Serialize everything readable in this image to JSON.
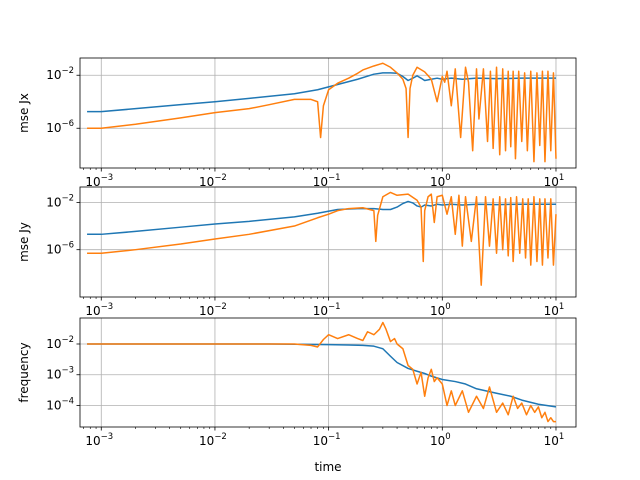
{
  "chart_data": [
    {
      "type": "line",
      "xlabel": "",
      "ylabel": "mse Jx",
      "xscale": "log",
      "yscale": "log",
      "xlim": [
        0.00065,
        15
      ],
      "ylim": [
        1e-09,
        0.2
      ],
      "grid": true,
      "xticks": [
        {
          "base": "10",
          "exp": "−3",
          "value": 0.001
        },
        {
          "base": "10",
          "exp": "−2",
          "value": 0.01
        },
        {
          "base": "10",
          "exp": "−1",
          "value": 0.1
        },
        {
          "base": "10",
          "exp": "0",
          "value": 1
        },
        {
          "base": "10",
          "exp": "1",
          "value": 10
        }
      ],
      "yticks": [
        {
          "base": "10",
          "exp": "−6",
          "value": 1e-06
        },
        {
          "base": "10",
          "exp": "−2",
          "value": 0.01
        }
      ],
      "series": [
        {
          "color": "#1f77b4",
          "x": [
            0.00075,
            0.001,
            0.002,
            0.005,
            0.01,
            0.02,
            0.05,
            0.08,
            0.12,
            0.18,
            0.25,
            0.3,
            0.35,
            0.4,
            0.45,
            0.5,
            0.55,
            0.6,
            0.65,
            0.7,
            0.8,
            0.9,
            1.0,
            1.2,
            1.5,
            2.0,
            3.0,
            5.0,
            10.0
          ],
          "y": [
            1.8e-05,
            1.8e-05,
            3e-05,
            6e-05,
            0.0001,
            0.00018,
            0.0004,
            0.0008,
            0.002,
            0.005,
            0.012,
            0.015,
            0.015,
            0.014,
            0.008,
            0.004,
            0.006,
            0.009,
            0.006,
            0.004,
            0.005,
            0.006,
            0.005,
            0.006,
            0.005,
            0.006,
            0.0055,
            0.006,
            0.006
          ]
        },
        {
          "color": "#ff7f0e",
          "x": [
            0.00075,
            0.001,
            0.002,
            0.005,
            0.01,
            0.02,
            0.03,
            0.05,
            0.07,
            0.08,
            0.085,
            0.09,
            0.1,
            0.12,
            0.15,
            0.18,
            0.2,
            0.25,
            0.3,
            0.35,
            0.4,
            0.45,
            0.48,
            0.5,
            0.52,
            0.55,
            0.6,
            0.7,
            0.8,
            0.9,
            1.0,
            1.05,
            1.1,
            1.2,
            1.3,
            1.45,
            1.6,
            1.7,
            1.85,
            2.0,
            2.1,
            2.3,
            2.5,
            2.65,
            2.8,
            3.0,
            3.2,
            3.4,
            3.6,
            3.8,
            4.0,
            4.2,
            4.4,
            4.7,
            5.0,
            5.3,
            5.6,
            6.0,
            6.4,
            6.8,
            7.2,
            7.6,
            8.0,
            8.5,
            9.0,
            9.5,
            10.0
          ],
          "y": [
            1e-06,
            1e-06,
            2e-06,
            6e-06,
            1.5e-05,
            3e-05,
            6e-05,
            0.00015,
            0.00015,
            0.0001,
            2e-07,
            5e-05,
            0.0008,
            0.0025,
            0.006,
            0.014,
            0.025,
            0.05,
            0.08,
            0.04,
            0.015,
            0.005,
            0.001,
            2e-07,
            0.001,
            0.01,
            0.04,
            0.018,
            0.005,
            0.0001,
            0.008,
            0.003,
            0.02,
            5e-05,
            0.03,
            2e-07,
            0.04,
            0.003,
            2e-08,
            0.03,
            5e-06,
            0.03,
            1e-07,
            0.02,
            3e-08,
            0.04,
            1e-08,
            0.03,
            2e-08,
            0.02,
            4e-08,
            0.02,
            5e-09,
            0.02,
            1e-07,
            0.015,
            2e-08,
            0.02,
            3e-09,
            0.015,
            5e-08,
            0.02,
            3e-09,
            0.02,
            2e-08,
            0.015,
            5e-09
          ]
        }
      ]
    },
    {
      "type": "line",
      "xlabel": "",
      "ylabel": "mse Jy",
      "xscale": "log",
      "yscale": "log",
      "xlim": [
        0.00065,
        15
      ],
      "ylim": [
        1e-10,
        0.2
      ],
      "grid": true,
      "xticks": [
        {
          "base": "10",
          "exp": "−3",
          "value": 0.001
        },
        {
          "base": "10",
          "exp": "−2",
          "value": 0.01
        },
        {
          "base": "10",
          "exp": "−1",
          "value": 0.1
        },
        {
          "base": "10",
          "exp": "0",
          "value": 1
        },
        {
          "base": "10",
          "exp": "1",
          "value": 10
        }
      ],
      "yticks": [
        {
          "base": "10",
          "exp": "−6",
          "value": 1e-06
        },
        {
          "base": "10",
          "exp": "−2",
          "value": 0.01
        }
      ],
      "series": [
        {
          "color": "#1f77b4",
          "x": [
            0.00075,
            0.001,
            0.002,
            0.005,
            0.01,
            0.02,
            0.05,
            0.08,
            0.12,
            0.18,
            0.25,
            0.3,
            0.35,
            0.4,
            0.45,
            0.5,
            0.55,
            0.6,
            0.65,
            0.7,
            0.8,
            0.9,
            1.0,
            1.2,
            1.5,
            2.0,
            3.0,
            5.0,
            10.0
          ],
          "y": [
            2e-05,
            2e-05,
            3.5e-05,
            8e-05,
            0.00015,
            0.00025,
            0.0006,
            0.0012,
            0.0025,
            0.003,
            0.003,
            0.0025,
            0.0025,
            0.004,
            0.008,
            0.012,
            0.009,
            0.005,
            0.004,
            0.006,
            0.005,
            0.007,
            0.006,
            0.007,
            0.006,
            0.007,
            0.0065,
            0.007,
            0.007
          ]
        },
        {
          "color": "#ff7f0e",
          "x": [
            0.00075,
            0.001,
            0.002,
            0.005,
            0.01,
            0.02,
            0.05,
            0.08,
            0.1,
            0.12,
            0.15,
            0.2,
            0.25,
            0.26,
            0.27,
            0.3,
            0.35,
            0.4,
            0.5,
            0.6,
            0.65,
            0.68,
            0.7,
            0.75,
            0.8,
            0.85,
            0.9,
            1.0,
            1.1,
            1.2,
            1.3,
            1.4,
            1.5,
            1.6,
            1.8,
            2.0,
            2.2,
            2.4,
            2.6,
            2.8,
            3.0,
            3.2,
            3.4,
            3.6,
            3.8,
            4.0,
            4.2,
            4.5,
            4.8,
            5.1,
            5.4,
            5.7,
            6.0,
            6.4,
            6.8,
            7.2,
            7.6,
            8.0,
            8.5,
            9.0,
            9.5,
            10.0
          ],
          "y": [
            5e-07,
            5e-07,
            1e-06,
            3e-06,
            8e-06,
            2e-05,
            0.0001,
            0.0005,
            0.001,
            0.002,
            0.003,
            0.0035,
            0.002,
            5e-06,
            0.0008,
            0.03,
            0.07,
            0.04,
            0.05,
            0.015,
            0.004,
            1e-07,
            0.002,
            0.03,
            0.05,
            0.0002,
            0.03,
            0.04,
            0.001,
            0.03,
            2e-05,
            0.04,
            2e-06,
            0.03,
            5e-06,
            0.03,
            1e-09,
            0.03,
            2e-06,
            0.02,
            5e-07,
            0.03,
            1e-06,
            0.02,
            3e-07,
            0.025,
            1e-07,
            0.03,
            5e-07,
            0.02,
            2e-07,
            0.02,
            5e-08,
            0.03,
            1e-07,
            0.02,
            5e-08,
            0.02,
            2e-07,
            0.02,
            5e-08,
            0.001
          ]
        }
      ]
    },
    {
      "type": "line",
      "xlabel": "time",
      "ylabel": "frequency",
      "xscale": "log",
      "yscale": "log",
      "xlim": [
        0.00065,
        15
      ],
      "ylim": [
        2e-05,
        0.07
      ],
      "grid": true,
      "xticks": [
        {
          "base": "10",
          "exp": "−3",
          "value": 0.001
        },
        {
          "base": "10",
          "exp": "−2",
          "value": 0.01
        },
        {
          "base": "10",
          "exp": "−1",
          "value": 0.1
        },
        {
          "base": "10",
          "exp": "0",
          "value": 1
        },
        {
          "base": "10",
          "exp": "1",
          "value": 10
        }
      ],
      "yticks": [
        {
          "base": "10",
          "exp": "−4",
          "value": 0.0001
        },
        {
          "base": "10",
          "exp": "−3",
          "value": 0.001
        },
        {
          "base": "10",
          "exp": "−2",
          "value": 0.01
        }
      ],
      "series": [
        {
          "color": "#1f77b4",
          "x": [
            0.00075,
            0.001,
            0.005,
            0.01,
            0.03,
            0.05,
            0.1,
            0.15,
            0.2,
            0.25,
            0.3,
            0.35,
            0.4,
            0.5,
            0.6,
            0.7,
            0.8,
            1.0,
            1.3,
            1.6,
            2.0,
            3.0,
            4.0,
            5.0,
            7.0,
            10.0
          ],
          "y": [
            0.01,
            0.01,
            0.01,
            0.01,
            0.01,
            0.0098,
            0.0095,
            0.0093,
            0.009,
            0.0085,
            0.007,
            0.004,
            0.0025,
            0.0016,
            0.0013,
            0.0011,
            0.0009,
            0.0007,
            0.0006,
            0.0005,
            0.00035,
            0.00025,
            0.0002,
            0.00015,
            0.00011,
            9e-05
          ]
        },
        {
          "color": "#ff7f0e",
          "x": [
            0.00075,
            0.001,
            0.005,
            0.01,
            0.02,
            0.03,
            0.05,
            0.07,
            0.08,
            0.09,
            0.1,
            0.12,
            0.15,
            0.18,
            0.2,
            0.22,
            0.25,
            0.28,
            0.3,
            0.32,
            0.35,
            0.38,
            0.4,
            0.45,
            0.5,
            0.55,
            0.6,
            0.65,
            0.7,
            0.75,
            0.8,
            0.85,
            0.9,
            1.0,
            1.1,
            1.2,
            1.3,
            1.5,
            1.7,
            2.0,
            2.3,
            2.6,
            3.0,
            3.4,
            3.8,
            4.2,
            4.6,
            5.0,
            5.5,
            6.0,
            6.5,
            7.0,
            7.5,
            8.0,
            8.5,
            9.0,
            9.5,
            10.0
          ],
          "y": [
            0.01,
            0.01,
            0.01,
            0.01,
            0.01,
            0.01,
            0.01,
            0.009,
            0.008,
            0.014,
            0.02,
            0.015,
            0.02,
            0.015,
            0.013,
            0.025,
            0.02,
            0.03,
            0.05,
            0.03,
            0.012,
            0.015,
            0.01,
            0.007,
            0.002,
            0.0015,
            0.0005,
            0.0012,
            0.0002,
            0.0008,
            0.0015,
            0.0006,
            0.0008,
            0.0005,
            0.0001,
            0.0003,
            0.0001,
            0.0003,
            6e-05,
            0.0002,
            8e-05,
            0.0004,
            6e-05,
            0.00012,
            5e-05,
            0.0002,
            8e-05,
            0.00012,
            5e-05,
            0.0001,
            6e-05,
            9e-05,
            4e-05,
            6e-05,
            3e-05,
            4e-05,
            3e-05,
            3e-05
          ]
        }
      ]
    }
  ]
}
